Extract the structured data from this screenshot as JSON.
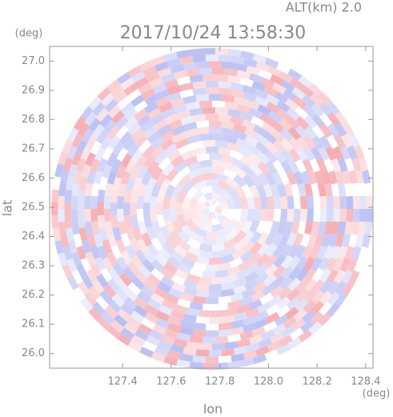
{
  "chart_data": {
    "type": "radar-ppi",
    "title": "2017/10/24 13:58:30",
    "annotation": "ALT(km) 2.0",
    "x_label": "lon",
    "y_label": "lat",
    "x_unit": "(deg)",
    "y_unit": "(deg)",
    "xlim": [
      127.1,
      128.43
    ],
    "xticks": [
      {
        "value": 127.4,
        "label": "127.4"
      },
      {
        "value": 127.6,
        "label": "127.6"
      },
      {
        "value": 127.8,
        "label": "127.8"
      },
      {
        "value": 128.0,
        "label": "128.0"
      },
      {
        "value": 128.2,
        "label": "128.2"
      },
      {
        "value": 128.4,
        "label": "128.4"
      }
    ],
    "ylim": [
      25.95,
      27.05
    ],
    "yticks": [
      {
        "value": 26.0,
        "label": "26.0"
      },
      {
        "value": 26.1,
        "label": "26.1"
      },
      {
        "value": 26.2,
        "label": "26.2"
      },
      {
        "value": 26.3,
        "label": "26.3"
      },
      {
        "value": 26.4,
        "label": "26.4"
      },
      {
        "value": 26.5,
        "label": "26.5"
      },
      {
        "value": 26.6,
        "label": "26.6"
      },
      {
        "value": 26.7,
        "label": "26.7"
      },
      {
        "value": 26.8,
        "label": "26.8"
      },
      {
        "value": 26.9,
        "label": "26.9"
      },
      {
        "value": 27.0,
        "label": "27.0"
      }
    ]
  }
}
